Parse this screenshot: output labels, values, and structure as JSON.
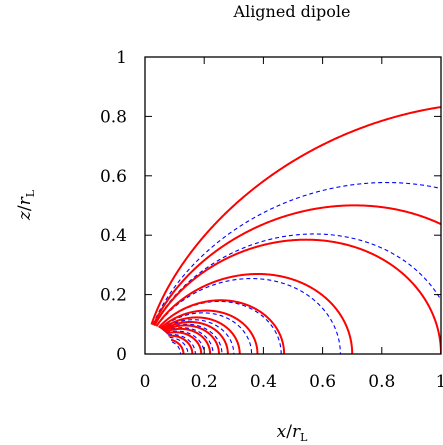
{
  "chart_data": {
    "type": "line",
    "title": "Aligned dipole",
    "xlabel": "x/r_L",
    "ylabel": "z/r_L",
    "xlim": [
      0,
      1
    ],
    "ylim": [
      0,
      1
    ],
    "xticks": [
      "0",
      "0.2",
      "0.4",
      "0.6",
      "0.8",
      "1"
    ],
    "yticks": [
      "0",
      "0.2",
      "0.4",
      "0.6",
      "0.8",
      "1"
    ],
    "grid": false,
    "legend": "none",
    "colors": {
      "solid": "#ff0000",
      "dashed": "#0000ff"
    },
    "star_radius": 0.1,
    "field_lines": {
      "solid_apex_x": [
        0.13,
        0.16,
        0.19,
        0.22,
        0.25,
        0.28,
        0.32,
        0.38,
        0.47,
        0.7,
        1.0,
        1.3,
        2.2
      ],
      "dashed_apex_x": [
        0.12,
        0.145,
        0.17,
        0.2,
        0.23,
        0.26,
        0.3,
        0.36,
        0.46,
        0.66,
        1.05,
        1.5
      ]
    }
  }
}
